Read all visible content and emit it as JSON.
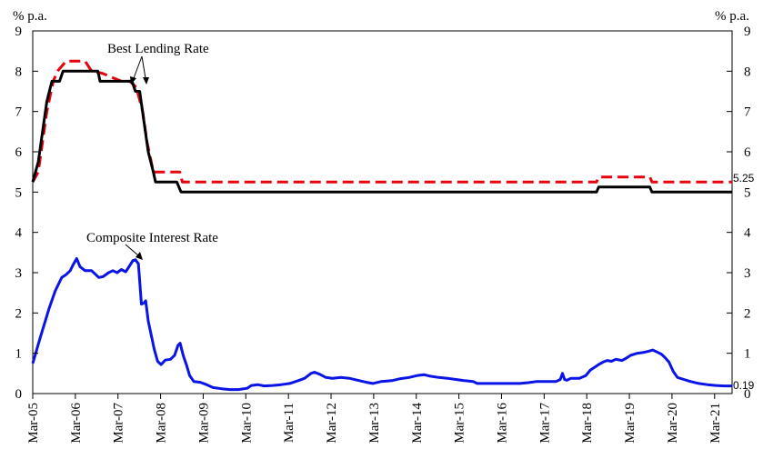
{
  "chart_data": {
    "type": "line",
    "left_axis_label": "% p.a.",
    "right_axis_label": "% p.a.",
    "ylim": [
      0,
      9
    ],
    "yticks": [
      "0",
      "1",
      "2",
      "3",
      "4",
      "5",
      "6",
      "7",
      "8",
      "9"
    ],
    "xlim": [
      2005.17,
      2021.58
    ],
    "x_tick_labels": [
      "Mar-05",
      "Mar-06",
      "Mar-07",
      "Mar-08",
      "Mar-09",
      "Mar-10",
      "Mar-11",
      "Mar-12",
      "Mar-13",
      "Mar-14",
      "Mar-15",
      "Mar-16",
      "Mar-17",
      "Mar-18",
      "Mar-19",
      "Mar-20",
      "Mar-21"
    ],
    "x_tick_values": [
      2005.17,
      2006.17,
      2007.17,
      2008.17,
      2009.17,
      2010.17,
      2011.17,
      2012.17,
      2013.17,
      2014.17,
      2015.17,
      2016.17,
      2017.17,
      2018.17,
      2019.17,
      2020.17,
      2021.17
    ],
    "annotations": {
      "best_lending_rate": "Best Lending Rate",
      "composite_interest_rate": "Composite Interest Rate",
      "end_label_red": "5.25",
      "end_label_blue": "0.19"
    },
    "series": [
      {
        "color": "#e8000b",
        "style": "dashed",
        "points": [
          [
            2005.17,
            5.25
          ],
          [
            2005.3,
            5.5
          ],
          [
            2005.4,
            6.25
          ],
          [
            2005.5,
            7.0
          ],
          [
            2005.65,
            7.75
          ],
          [
            2005.75,
            8.0
          ],
          [
            2005.95,
            8.25
          ],
          [
            2006.4,
            8.25
          ],
          [
            2006.55,
            8.0
          ],
          [
            2006.8,
            7.95
          ],
          [
            2007.25,
            7.75
          ],
          [
            2007.45,
            7.75
          ],
          [
            2007.6,
            7.6
          ],
          [
            2007.75,
            7.0
          ],
          [
            2007.85,
            6.25
          ],
          [
            2007.95,
            5.75
          ],
          [
            2008.0,
            5.5
          ],
          [
            2008.3,
            5.5
          ],
          [
            2008.62,
            5.5
          ],
          [
            2008.68,
            5.25
          ],
          [
            2018.4,
            5.25
          ],
          [
            2018.45,
            5.375
          ],
          [
            2019.65,
            5.375
          ],
          [
            2019.7,
            5.25
          ],
          [
            2021.58,
            5.25
          ]
        ]
      },
      {
        "color": "#000000",
        "style": "solid",
        "points": [
          [
            2005.17,
            5.25
          ],
          [
            2005.3,
            5.75
          ],
          [
            2005.4,
            6.5
          ],
          [
            2005.5,
            7.25
          ],
          [
            2005.62,
            7.75
          ],
          [
            2005.8,
            7.75
          ],
          [
            2005.88,
            8.0
          ],
          [
            2006.7,
            8.0
          ],
          [
            2006.75,
            7.75
          ],
          [
            2007.2,
            7.75
          ],
          [
            2007.5,
            7.75
          ],
          [
            2007.58,
            7.5
          ],
          [
            2007.68,
            7.5
          ],
          [
            2007.78,
            6.75
          ],
          [
            2007.88,
            6.0
          ],
          [
            2008.0,
            5.5
          ],
          [
            2008.05,
            5.25
          ],
          [
            2008.55,
            5.25
          ],
          [
            2008.65,
            5.0
          ],
          [
            2018.4,
            5.0
          ],
          [
            2018.45,
            5.125
          ],
          [
            2019.65,
            5.125
          ],
          [
            2019.7,
            5.0
          ],
          [
            2021.58,
            5.0
          ]
        ]
      },
      {
        "color": "#0a14e6",
        "style": "solid",
        "points": [
          [
            2005.17,
            0.75
          ],
          [
            2005.35,
            1.4
          ],
          [
            2005.55,
            2.1
          ],
          [
            2005.7,
            2.55
          ],
          [
            2005.85,
            2.88
          ],
          [
            2005.95,
            2.95
          ],
          [
            2006.05,
            3.05
          ],
          [
            2006.12,
            3.2
          ],
          [
            2006.2,
            3.35
          ],
          [
            2006.28,
            3.15
          ],
          [
            2006.4,
            3.05
          ],
          [
            2006.55,
            3.05
          ],
          [
            2006.65,
            2.95
          ],
          [
            2006.72,
            2.88
          ],
          [
            2006.82,
            2.9
          ],
          [
            2006.95,
            3.0
          ],
          [
            2007.05,
            3.05
          ],
          [
            2007.15,
            3.0
          ],
          [
            2007.25,
            3.08
          ],
          [
            2007.35,
            3.02
          ],
          [
            2007.45,
            3.18
          ],
          [
            2007.52,
            3.3
          ],
          [
            2007.58,
            3.32
          ],
          [
            2007.65,
            3.22
          ],
          [
            2007.72,
            2.22
          ],
          [
            2007.78,
            2.25
          ],
          [
            2007.82,
            2.3
          ],
          [
            2007.88,
            1.8
          ],
          [
            2007.95,
            1.45
          ],
          [
            2008.02,
            1.1
          ],
          [
            2008.1,
            0.8
          ],
          [
            2008.18,
            0.72
          ],
          [
            2008.28,
            0.83
          ],
          [
            2008.4,
            0.85
          ],
          [
            2008.5,
            0.95
          ],
          [
            2008.58,
            1.2
          ],
          [
            2008.63,
            1.25
          ],
          [
            2008.7,
            0.95
          ],
          [
            2008.78,
            0.7
          ],
          [
            2008.85,
            0.45
          ],
          [
            2008.95,
            0.3
          ],
          [
            2009.1,
            0.28
          ],
          [
            2009.25,
            0.22
          ],
          [
            2009.4,
            0.15
          ],
          [
            2009.6,
            0.12
          ],
          [
            2009.8,
            0.1
          ],
          [
            2010.0,
            0.1
          ],
          [
            2010.2,
            0.13
          ],
          [
            2010.3,
            0.2
          ],
          [
            2010.45,
            0.22
          ],
          [
            2010.6,
            0.19
          ],
          [
            2010.8,
            0.2
          ],
          [
            2011.0,
            0.22
          ],
          [
            2011.2,
            0.25
          ],
          [
            2011.4,
            0.32
          ],
          [
            2011.55,
            0.38
          ],
          [
            2011.7,
            0.5
          ],
          [
            2011.78,
            0.53
          ],
          [
            2011.9,
            0.48
          ],
          [
            2012.05,
            0.4
          ],
          [
            2012.2,
            0.38
          ],
          [
            2012.4,
            0.4
          ],
          [
            2012.6,
            0.38
          ],
          [
            2012.8,
            0.33
          ],
          [
            2013.0,
            0.28
          ],
          [
            2013.15,
            0.25
          ],
          [
            2013.35,
            0.3
          ],
          [
            2013.6,
            0.32
          ],
          [
            2013.8,
            0.37
          ],
          [
            2014.0,
            0.4
          ],
          [
            2014.2,
            0.45
          ],
          [
            2014.35,
            0.47
          ],
          [
            2014.5,
            0.43
          ],
          [
            2014.7,
            0.4
          ],
          [
            2014.9,
            0.38
          ],
          [
            2015.1,
            0.35
          ],
          [
            2015.3,
            0.32
          ],
          [
            2015.5,
            0.3
          ],
          [
            2015.6,
            0.25
          ],
          [
            2015.8,
            0.25
          ],
          [
            2016.2,
            0.25
          ],
          [
            2016.6,
            0.25
          ],
          [
            2016.8,
            0.27
          ],
          [
            2017.0,
            0.3
          ],
          [
            2017.3,
            0.3
          ],
          [
            2017.45,
            0.3
          ],
          [
            2017.55,
            0.35
          ],
          [
            2017.6,
            0.5
          ],
          [
            2017.65,
            0.35
          ],
          [
            2017.7,
            0.33
          ],
          [
            2017.8,
            0.38
          ],
          [
            2018.0,
            0.38
          ],
          [
            2018.15,
            0.45
          ],
          [
            2018.25,
            0.58
          ],
          [
            2018.35,
            0.65
          ],
          [
            2018.45,
            0.72
          ],
          [
            2018.55,
            0.78
          ],
          [
            2018.65,
            0.82
          ],
          [
            2018.75,
            0.8
          ],
          [
            2018.85,
            0.85
          ],
          [
            2019.0,
            0.82
          ],
          [
            2019.1,
            0.88
          ],
          [
            2019.2,
            0.95
          ],
          [
            2019.35,
            1.0
          ],
          [
            2019.5,
            1.02
          ],
          [
            2019.62,
            1.05
          ],
          [
            2019.72,
            1.08
          ],
          [
            2019.82,
            1.03
          ],
          [
            2019.92,
            0.98
          ],
          [
            2020.0,
            0.9
          ],
          [
            2020.1,
            0.78
          ],
          [
            2020.2,
            0.55
          ],
          [
            2020.3,
            0.4
          ],
          [
            2020.45,
            0.35
          ],
          [
            2020.6,
            0.3
          ],
          [
            2020.8,
            0.25
          ],
          [
            2021.0,
            0.22
          ],
          [
            2021.2,
            0.2
          ],
          [
            2021.4,
            0.19
          ],
          [
            2021.58,
            0.19
          ]
        ]
      }
    ]
  }
}
